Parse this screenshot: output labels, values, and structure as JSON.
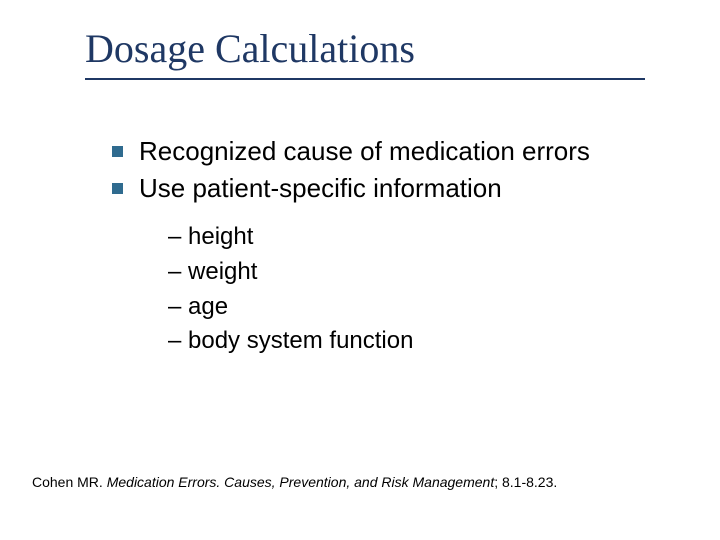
{
  "title": "Dosage Calculations",
  "bullets": [
    {
      "text": "Recognized cause of medication errors"
    },
    {
      "text": "Use patient-specific information"
    }
  ],
  "sub_items": [
    "– height",
    "– weight",
    "– age",
    "– body system function"
  ],
  "footnote": {
    "author": "Cohen MR.  ",
    "title_italic": "Medication Errors.  Causes, Prevention, and Risk Management",
    "pages": "; 8.1-8.23."
  },
  "colors": {
    "title_color": "#1f3864",
    "bullet_square": "#2f6b8f",
    "text": "#000000",
    "background": "#ffffff"
  },
  "typography": {
    "title_font": "Times New Roman",
    "title_size_pt": 36,
    "body_font": "Arial",
    "body_size_pt": 24,
    "sub_size_pt": 22,
    "footnote_size_pt": 12
  }
}
